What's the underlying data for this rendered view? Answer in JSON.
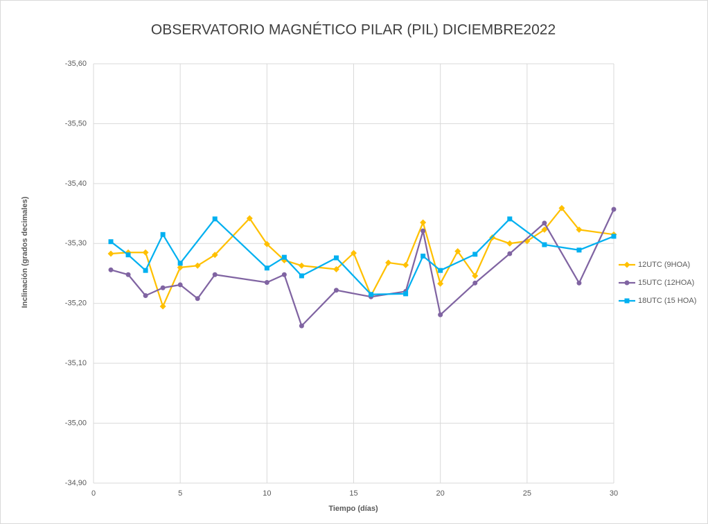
{
  "chart_data": {
    "type": "line",
    "title": "OBSERVATORIO MAGNÉTICO PILAR (PIL) DICIEMBRE2022",
    "x_label": "Tiempo (días)",
    "y_label": "Inclinación (grados decimales)",
    "xlim": [
      0,
      30
    ],
    "xticks": [
      0,
      5,
      10,
      15,
      20,
      25,
      30
    ],
    "ylim": [
      -35.6,
      -34.9
    ],
    "y_inverted": true,
    "yticks": [
      {
        "value": -35.6,
        "label": "-35,60"
      },
      {
        "value": -35.5,
        "label": "-35,50"
      },
      {
        "value": -35.4,
        "label": "-35,40"
      },
      {
        "value": -35.3,
        "label": "-35,30"
      },
      {
        "value": -35.2,
        "label": "-35,20"
      },
      {
        "value": -35.1,
        "label": "-35,10"
      },
      {
        "value": -35.0,
        "label": "-35,00"
      },
      {
        "value": -34.9,
        "label": "-34,90"
      }
    ],
    "grid": true,
    "legend": "right",
    "series": [
      {
        "name": "12UTC (9HOA)",
        "color": "#ffc000",
        "marker": "diamond",
        "x": [
          1,
          2,
          3,
          4,
          5,
          6,
          7,
          9,
          10,
          11,
          12,
          14,
          15,
          16,
          17,
          18,
          19,
          20,
          21,
          22,
          23,
          24,
          25,
          26,
          27,
          28,
          30
        ],
        "values": [
          -35.283,
          -35.285,
          -35.285,
          -35.195,
          -35.26,
          -35.263,
          -35.281,
          -35.342,
          -35.299,
          -35.272,
          -35.263,
          -35.257,
          -35.284,
          -35.213,
          -35.268,
          -35.264,
          -35.335,
          -35.233,
          -35.287,
          -35.246,
          -35.31,
          -35.3,
          -35.304,
          -35.323,
          -35.359,
          -35.323,
          -35.315
        ]
      },
      {
        "name": "15UTC (12HOA)",
        "color": "#8064a2",
        "marker": "circle",
        "x": [
          1,
          2,
          3,
          4,
          5,
          6,
          7,
          10,
          11,
          12,
          14,
          16,
          18,
          19,
          20,
          22,
          24,
          26,
          28,
          30
        ],
        "values": [
          -35.256,
          -35.248,
          -35.213,
          -35.226,
          -35.231,
          -35.208,
          -35.248,
          -35.235,
          -35.248,
          -35.1625,
          -35.222,
          -35.211,
          -35.22,
          -35.321,
          -35.181,
          -35.234,
          -35.283,
          -35.334,
          -35.234,
          -35.357
        ]
      },
      {
        "name": "18UTC (15 HOA)",
        "color": "#00b0f0",
        "marker": "square",
        "x": [
          1,
          2,
          3,
          4,
          5,
          7,
          10,
          11,
          12,
          14,
          16,
          18,
          19,
          20,
          22,
          24,
          26,
          28,
          30
        ],
        "values": [
          -35.303,
          -35.281,
          -35.255,
          -35.315,
          -35.267,
          -35.341,
          -35.259,
          -35.277,
          -35.246,
          -35.276,
          -35.215,
          -35.216,
          -35.279,
          -35.255,
          -35.282,
          -35.341,
          -35.298,
          -35.289,
          -35.312
        ]
      }
    ]
  }
}
